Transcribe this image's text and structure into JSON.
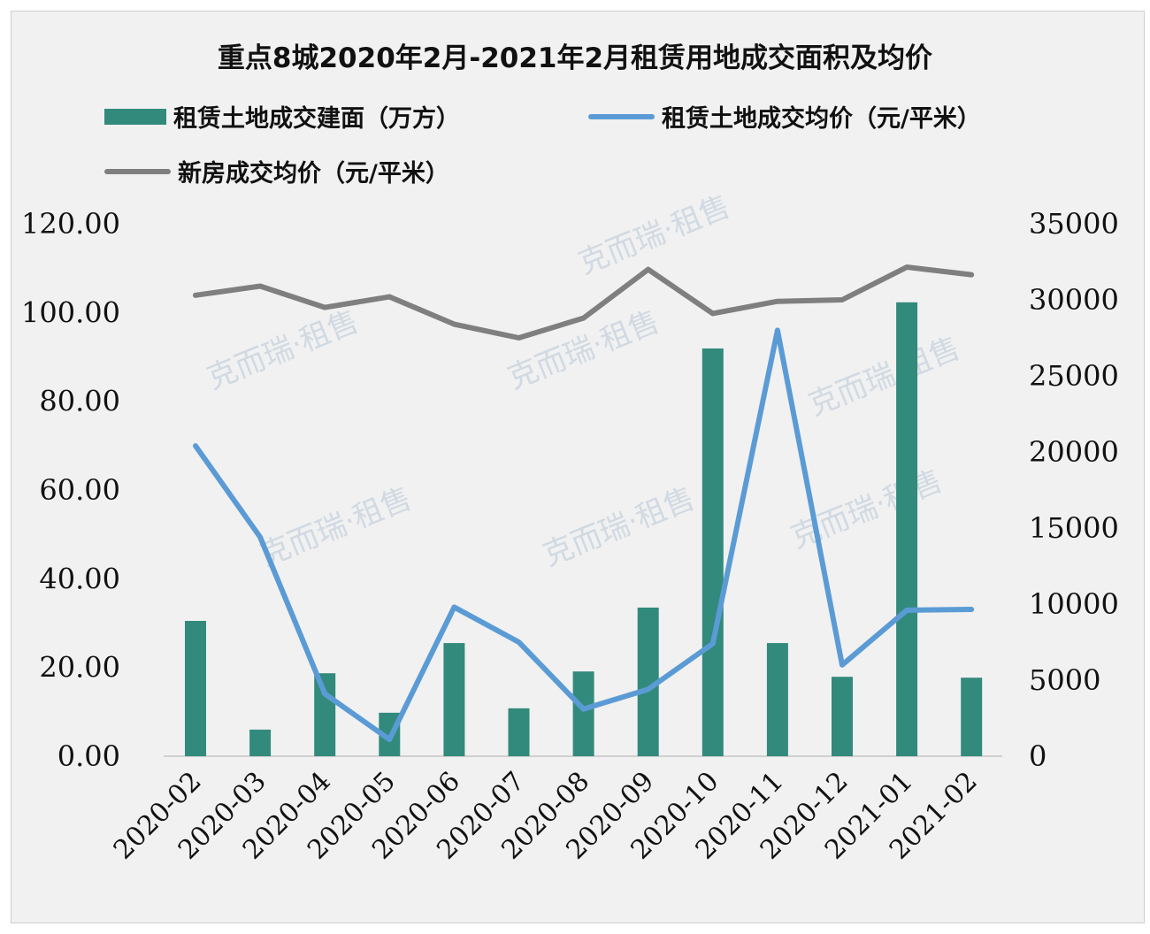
{
  "chart_data": {
    "type": "bar+line",
    "title": "重点8城2020年2月-2021年2月租赁用地成交面积及均价",
    "categories": [
      "2020-02",
      "2020-03",
      "2020-04",
      "2020-05",
      "2020-06",
      "2020-07",
      "2020-08",
      "2020-09",
      "2020-10",
      "2020-11",
      "2020-12",
      "2021-01",
      "2021-02"
    ],
    "series": [
      {
        "name": "租赁土地成交建面（万方）",
        "type": "bar",
        "axis": "left",
        "color": "#328a7c",
        "values": [
          30.5,
          6.0,
          18.7,
          9.8,
          25.5,
          10.8,
          19.1,
          33.5,
          91.9,
          25.5,
          17.9,
          102.3,
          17.7
        ]
      },
      {
        "name": "租赁土地成交均价（元/平米）",
        "type": "line",
        "axis": "right",
        "color": "#5b9bd5",
        "values": [
          20400,
          14400,
          4100,
          1100,
          9800,
          7500,
          3100,
          4400,
          7400,
          28000,
          6000,
          9600,
          9650
        ]
      },
      {
        "name": "新房成交均价（元/平米）",
        "type": "line",
        "axis": "right",
        "color": "#7f7f7f",
        "values": [
          30300,
          30900,
          29500,
          30200,
          28400,
          27500,
          28800,
          32000,
          29100,
          29900,
          30000,
          32150,
          31650
        ]
      }
    ],
    "left_axis": {
      "ylim": [
        0,
        120
      ],
      "ticks": [
        "0.00",
        "20.00",
        "40.00",
        "60.00",
        "80.00",
        "100.00",
        "120.00"
      ]
    },
    "right_axis": {
      "ylim": [
        0,
        35000
      ],
      "ticks": [
        "0",
        "5000",
        "10000",
        "15000",
        "20000",
        "25000",
        "30000",
        "35000"
      ]
    },
    "legend_position": "top",
    "grid": false,
    "watermark": "克而瑞·租售"
  }
}
